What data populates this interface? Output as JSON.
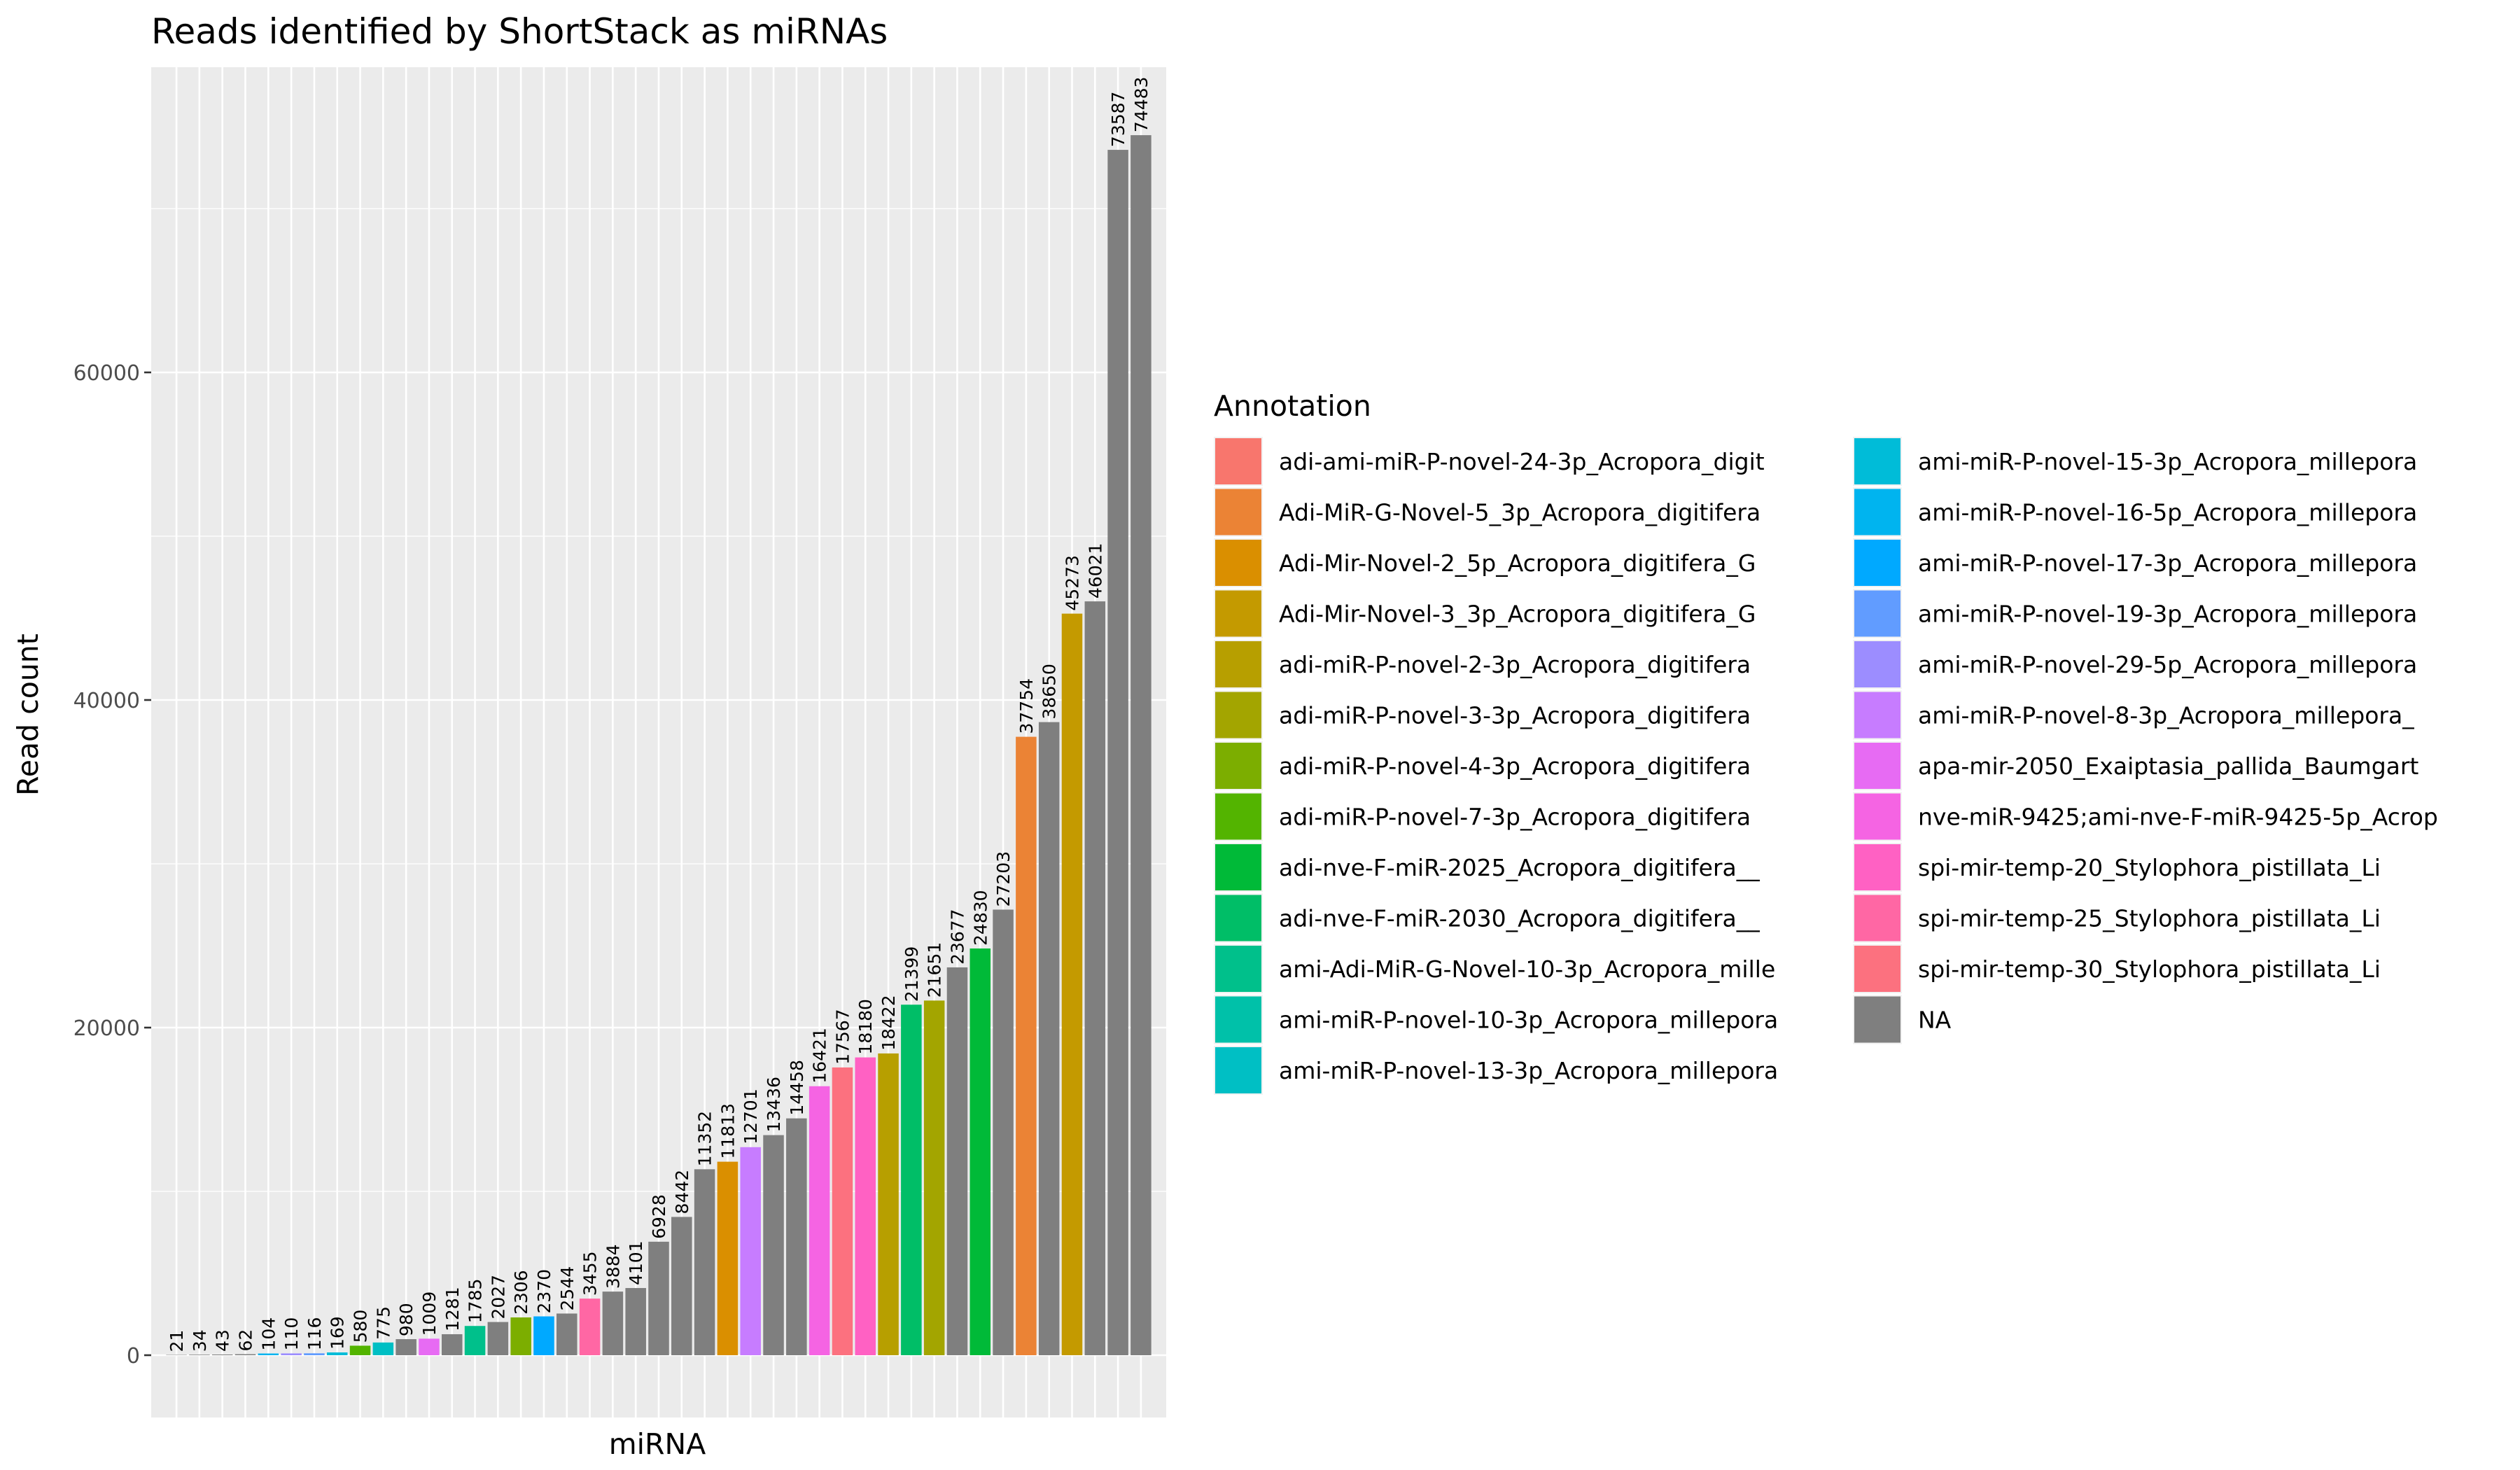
{
  "chart_data": {
    "type": "bar",
    "title": "Reads identified by ShortStack as miRNAs",
    "xlabel": "miRNA",
    "ylabel": "Read count",
    "ylim": [
      0,
      78500
    ],
    "y_ticks": [
      0,
      20000,
      40000,
      60000
    ],
    "grid": true,
    "legend": {
      "title": "Annotation",
      "placement": "right",
      "entries": [
        {
          "label": "adi-ami-miR-P-novel-24-3p_Acropora_digit",
          "color": "#F8766D"
        },
        {
          "label": "Adi-MiR-G-Novel-5_3p_Acropora_digitifera",
          "color": "#EB8335"
        },
        {
          "label": "Adi-Mir-Novel-2_5p_Acropora_digitifera_G",
          "color": "#DA8F00"
        },
        {
          "label": "Adi-Mir-Novel-3_3p_Acropora_digitifera_G",
          "color": "#C49A00"
        },
        {
          "label": "adi-miR-P-novel-2-3p_Acropora_digitifera",
          "color": "#B79F00"
        },
        {
          "label": "adi-miR-P-novel-3-3p_Acropora_digitifera",
          "color": "#A3A500"
        },
        {
          "label": "adi-miR-P-novel-4-3p_Acropora_digitifera",
          "color": "#7CAE00"
        },
        {
          "label": "adi-miR-P-novel-7-3p_Acropora_digitifera",
          "color": "#53B400"
        },
        {
          "label": "adi-nve-F-miR-2025_Acropora_digitifera__",
          "color": "#00BA38"
        },
        {
          "label": "adi-nve-F-miR-2030_Acropora_digitifera__",
          "color": "#00BE67"
        },
        {
          "label": "ami-Adi-MiR-G-Novel-10-3p_Acropora_mille",
          "color": "#00C08B"
        },
        {
          "label": "ami-miR-P-novel-10-3p_Acropora_millepora",
          "color": "#00C1A9"
        },
        {
          "label": "ami-miR-P-novel-13-3p_Acropora_millepora",
          "color": "#00BFC4"
        },
        {
          "label": "ami-miR-P-novel-15-3p_Acropora_millepora",
          "color": "#00BCD8"
        },
        {
          "label": "ami-miR-P-novel-16-5p_Acropora_millepora",
          "color": "#00B4EF"
        },
        {
          "label": "ami-miR-P-novel-17-3p_Acropora_millepora",
          "color": "#00A9FF"
        },
        {
          "label": "ami-miR-P-novel-19-3p_Acropora_millepora",
          "color": "#619CFF"
        },
        {
          "label": "ami-miR-P-novel-29-5p_Acropora_millepora",
          "color": "#9C8DFF"
        },
        {
          "label": "ami-miR-P-novel-8-3p_Acropora_millepora_",
          "color": "#C77CFF"
        },
        {
          "label": "apa-mir-2050_Exaiptasia_pallida_Baumgart",
          "color": "#E76BF3"
        },
        {
          "label": "nve-miR-9425;ami-nve-F-miR-9425-5p_Acrop",
          "color": "#F564E3"
        },
        {
          "label": "spi-mir-temp-20_Stylophora_pistillata_Li",
          "color": "#FF61C3"
        },
        {
          "label": "spi-mir-temp-25_Stylophora_pistillata_Li",
          "color": "#FF67A4"
        },
        {
          "label": "spi-mir-temp-30_Stylophora_pistillata_Li",
          "color": "#FC717F"
        },
        {
          "label": "NA",
          "color": "#7F7F7F"
        }
      ]
    },
    "bars": [
      {
        "value": 21,
        "label": "21",
        "annotation": "NA"
      },
      {
        "value": 34,
        "label": "34",
        "annotation": "NA"
      },
      {
        "value": 43,
        "label": "43",
        "annotation": "NA"
      },
      {
        "value": 62,
        "label": "62",
        "annotation": "NA"
      },
      {
        "value": 104,
        "label": "104",
        "annotation": "ami-miR-P-novel-16-5p_Acropora_millepora"
      },
      {
        "value": 110,
        "label": "110",
        "annotation": "ami-miR-P-novel-29-5p_Acropora_millepora"
      },
      {
        "value": 116,
        "label": "116",
        "annotation": "ami-miR-P-novel-19-3p_Acropora_millepora"
      },
      {
        "value": 169,
        "label": "169",
        "annotation": "ami-miR-P-novel-15-3p_Acropora_millepora"
      },
      {
        "value": 580,
        "label": "580",
        "annotation": "adi-miR-P-novel-7-3p_Acropora_digitifera"
      },
      {
        "value": 775,
        "label": "775",
        "annotation": "ami-miR-P-novel-13-3p_Acropora_millepora"
      },
      {
        "value": 980,
        "label": "980",
        "annotation": "NA"
      },
      {
        "value": 1009,
        "label": "1009",
        "annotation": "apa-mir-2050_Exaiptasia_pallida_Baumgart"
      },
      {
        "value": 1281,
        "label": "1281",
        "annotation": "NA"
      },
      {
        "value": 1785,
        "label": "1785",
        "annotation": "ami-Adi-MiR-G-Novel-10-3p_Acropora_mille"
      },
      {
        "value": 2027,
        "label": "2027",
        "annotation": "NA"
      },
      {
        "value": 2306,
        "label": "2306",
        "annotation": "adi-miR-P-novel-4-3p_Acropora_digitifera"
      },
      {
        "value": 2370,
        "label": "2370",
        "annotation": "ami-miR-P-novel-17-3p_Acropora_millepora"
      },
      {
        "value": 2544,
        "label": "2544",
        "annotation": "NA"
      },
      {
        "value": 3455,
        "label": "3455",
        "annotation": "spi-mir-temp-25_Stylophora_pistillata_Li"
      },
      {
        "value": 3884,
        "label": "3884",
        "annotation": "NA"
      },
      {
        "value": 4101,
        "label": "4101",
        "annotation": "NA"
      },
      {
        "value": 6928,
        "label": "6928",
        "annotation": "NA"
      },
      {
        "value": 8442,
        "label": "8442",
        "annotation": "NA"
      },
      {
        "value": 11352,
        "label": "11352",
        "annotation": "NA"
      },
      {
        "value": 11813,
        "label": "11813",
        "annotation": "Adi-Mir-Novel-2_5p_Acropora_digitifera_G"
      },
      {
        "value": 12701,
        "label": "12701",
        "annotation": "ami-miR-P-novel-8-3p_Acropora_millepora_"
      },
      {
        "value": 13436,
        "label": "13436",
        "annotation": "NA"
      },
      {
        "value": 14458,
        "label": "14458",
        "annotation": "NA"
      },
      {
        "value": 16421,
        "label": "16421",
        "annotation": "nve-miR-9425;ami-nve-F-miR-9425-5p_Acrop"
      },
      {
        "value": 17567,
        "label": "17567",
        "annotation": "spi-mir-temp-30_Stylophora_pistillata_Li"
      },
      {
        "value": 18180,
        "label": "18180",
        "annotation": "spi-mir-temp-20_Stylophora_pistillata_Li"
      },
      {
        "value": 18422,
        "label": "18422",
        "annotation": "adi-miR-P-novel-2-3p_Acropora_digitifera"
      },
      {
        "value": 21399,
        "label": "21399",
        "annotation": "adi-nve-F-miR-2030_Acropora_digitifera__"
      },
      {
        "value": 21651,
        "label": "21651",
        "annotation": "adi-miR-P-novel-3-3p_Acropora_digitifera"
      },
      {
        "value": 23677,
        "label": "23677",
        "annotation": "NA"
      },
      {
        "value": 24830,
        "label": "24830",
        "annotation": "adi-nve-F-miR-2025_Acropora_digitifera__"
      },
      {
        "value": 27203,
        "label": "27203",
        "annotation": "NA"
      },
      {
        "value": 37754,
        "label": "37754",
        "annotation": "Adi-MiR-G-Novel-5_3p_Acropora_digitifera"
      },
      {
        "value": 38650,
        "label": "38650",
        "annotation": "NA"
      },
      {
        "value": 45273,
        "label": "45273",
        "annotation": "Adi-Mir-Novel-3_3p_Acropora_digitifera_G"
      },
      {
        "value": 46021,
        "label": "46021",
        "annotation": "NA"
      },
      {
        "value": 73587,
        "label": "73587",
        "annotation": "NA"
      },
      {
        "value": 74483,
        "label": "74483",
        "annotation": "NA"
      }
    ]
  }
}
